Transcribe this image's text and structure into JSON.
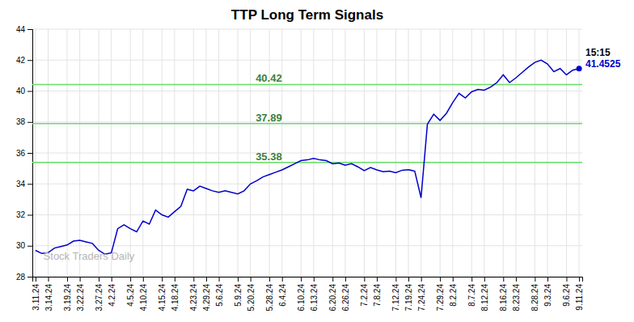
{
  "chart_data": {
    "type": "line",
    "title": "TTP Long Term Signals",
    "categories": [
      "3.11.24",
      null,
      "3.14.24",
      null,
      null,
      "3.19.24",
      null,
      "3.22.24",
      null,
      null,
      "3.27.24",
      null,
      "4.2.24",
      null,
      null,
      "4.5.24",
      null,
      "4.10.24",
      null,
      null,
      "4.15.24",
      null,
      "4.18.24",
      null,
      null,
      "4.23.24",
      null,
      "4.29.24",
      null,
      "5.6.24",
      null,
      null,
      "5.9.24",
      null,
      "5.20.24",
      null,
      null,
      "5.28.24",
      null,
      "6.4.24",
      null,
      null,
      "6.10.24",
      null,
      "6.13.24",
      null,
      null,
      "6.20.24",
      null,
      "6.26.24",
      null,
      null,
      "7.2.24",
      null,
      "7.8.24",
      null,
      null,
      "7.12.24",
      null,
      "7.19.24",
      null,
      "7.24.24",
      null,
      null,
      "7.29.24",
      null,
      "8.2.24",
      null,
      null,
      "8.7.24",
      null,
      "8.12.24",
      null,
      null,
      "8.16.24",
      null,
      "8.23.24",
      null,
      null,
      "8.28.24",
      null,
      "9.3.24",
      null,
      null,
      "9.6.24",
      null,
      "9.11.24"
    ],
    "values": [
      29.7,
      29.5,
      29.55,
      29.85,
      29.95,
      30.05,
      30.3,
      30.35,
      30.25,
      30.15,
      29.7,
      29.45,
      29.55,
      31.1,
      31.35,
      31.1,
      30.9,
      31.6,
      31.4,
      32.3,
      32.0,
      31.85,
      32.2,
      32.55,
      33.65,
      33.55,
      33.85,
      33.7,
      33.55,
      33.45,
      33.55,
      33.45,
      33.35,
      33.55,
      34.0,
      34.2,
      34.45,
      34.6,
      34.75,
      34.9,
      35.1,
      35.3,
      35.5,
      35.55,
      35.65,
      35.55,
      35.5,
      35.3,
      35.35,
      35.2,
      35.3,
      35.1,
      34.85,
      35.05,
      34.9,
      34.78,
      34.82,
      34.72,
      34.88,
      34.92,
      34.82,
      33.1,
      37.85,
      38.5,
      38.1,
      38.55,
      39.25,
      39.85,
      39.55,
      39.95,
      40.1,
      40.05,
      40.25,
      40.55,
      41.05,
      40.55,
      40.85,
      41.2,
      41.55,
      41.85,
      42.0,
      41.75,
      41.25,
      41.45,
      41.05,
      41.35,
      41.4525
    ],
    "color": "#0000cc",
    "ylim": [
      28,
      44
    ],
    "yticks": [
      28,
      30,
      32,
      34,
      36,
      38,
      40,
      42,
      44
    ],
    "grid": true,
    "reference_lines": [
      {
        "value": 40.42,
        "color": "#66dd66"
      },
      {
        "value": 37.89,
        "color": "#66dd66"
      },
      {
        "value": 35.38,
        "color": "#66dd66"
      }
    ],
    "annotations": [
      "15:15",
      "41.4525",
      "Stock Traders Daily"
    ]
  }
}
